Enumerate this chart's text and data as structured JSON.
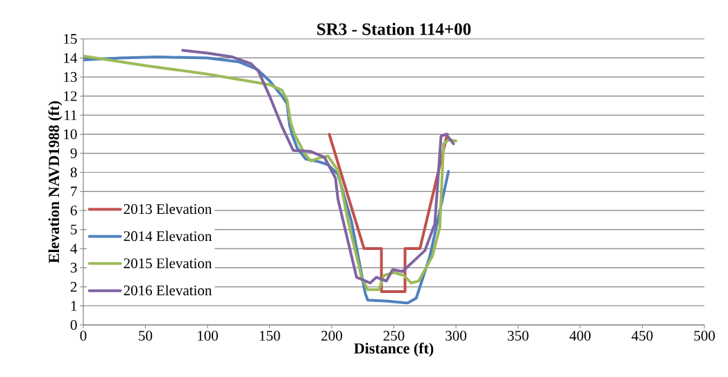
{
  "chart_data": {
    "type": "line",
    "title": "SR3 - Station 114+00",
    "xlabel": "Distance (ft)",
    "ylabel": "Elevation NAVD1988 (ft)",
    "xlim": [
      0,
      500
    ],
    "xticks": [
      0,
      50,
      100,
      150,
      200,
      250,
      300,
      350,
      400,
      450,
      500
    ],
    "ylim": [
      0,
      15
    ],
    "yticks": [
      0,
      1,
      2,
      3,
      4,
      5,
      6,
      7,
      8,
      9,
      10,
      11,
      12,
      13,
      14,
      15
    ],
    "grid": "y",
    "legend": "left",
    "marker": "none",
    "line_style": "solid",
    "series": [
      {
        "name": "2013 Elevation",
        "color": "#c0504d",
        "x": [
          198,
          226,
          240,
          240,
          259,
          259,
          271,
          293
        ],
        "values": [
          10,
          4,
          4,
          1.75,
          1.75,
          4,
          4,
          10
        ]
      },
      {
        "name": "2014 Elevation",
        "color": "#4f81bd",
        "x": [
          0,
          30,
          60,
          100,
          125,
          140,
          150,
          160,
          164,
          166,
          168,
          172,
          179,
          190,
          197,
          205,
          216,
          227,
          229,
          245,
          261,
          268,
          279,
          294
        ],
        "values": [
          13.9,
          14.0,
          14.05,
          14.0,
          13.8,
          13.4,
          12.8,
          12.0,
          11.6,
          10.5,
          10.0,
          9.3,
          8.7,
          8.55,
          8.4,
          7.9,
          5.4,
          1.65,
          1.3,
          1.25,
          1.15,
          1.4,
          3.6,
          8.05
        ]
      },
      {
        "name": "2015 Elevation",
        "color": "#9bbb59",
        "x": [
          0,
          50,
          100,
          150,
          160,
          164,
          167,
          170,
          178,
          183,
          190,
          197,
          205,
          213,
          224,
          229,
          238,
          242,
          250,
          258,
          264,
          270,
          281,
          287,
          290,
          294,
          300
        ],
        "values": [
          14.1,
          13.6,
          13.15,
          12.6,
          12.3,
          11.8,
          10.6,
          10.0,
          9.0,
          8.6,
          8.75,
          8.85,
          8.1,
          5.5,
          2.5,
          1.85,
          1.85,
          2.6,
          2.75,
          2.6,
          2.2,
          2.3,
          3.6,
          5.1,
          9.5,
          9.7,
          9.65
        ]
      },
      {
        "name": "2016 Elevation",
        "color": "#8064a2",
        "x": [
          80,
          100,
          120,
          135,
          141,
          150,
          160,
          169,
          183,
          194,
          203,
          205,
          220,
          231,
          236,
          244,
          249,
          257,
          275,
          283,
          288,
          292,
          298
        ],
        "values": [
          14.4,
          14.25,
          14.05,
          13.7,
          13.3,
          12.0,
          10.4,
          9.15,
          9.1,
          8.8,
          7.7,
          6.6,
          2.5,
          2.2,
          2.5,
          2.3,
          2.9,
          2.8,
          3.9,
          5.3,
          9.9,
          10.0,
          9.5
        ]
      }
    ]
  }
}
